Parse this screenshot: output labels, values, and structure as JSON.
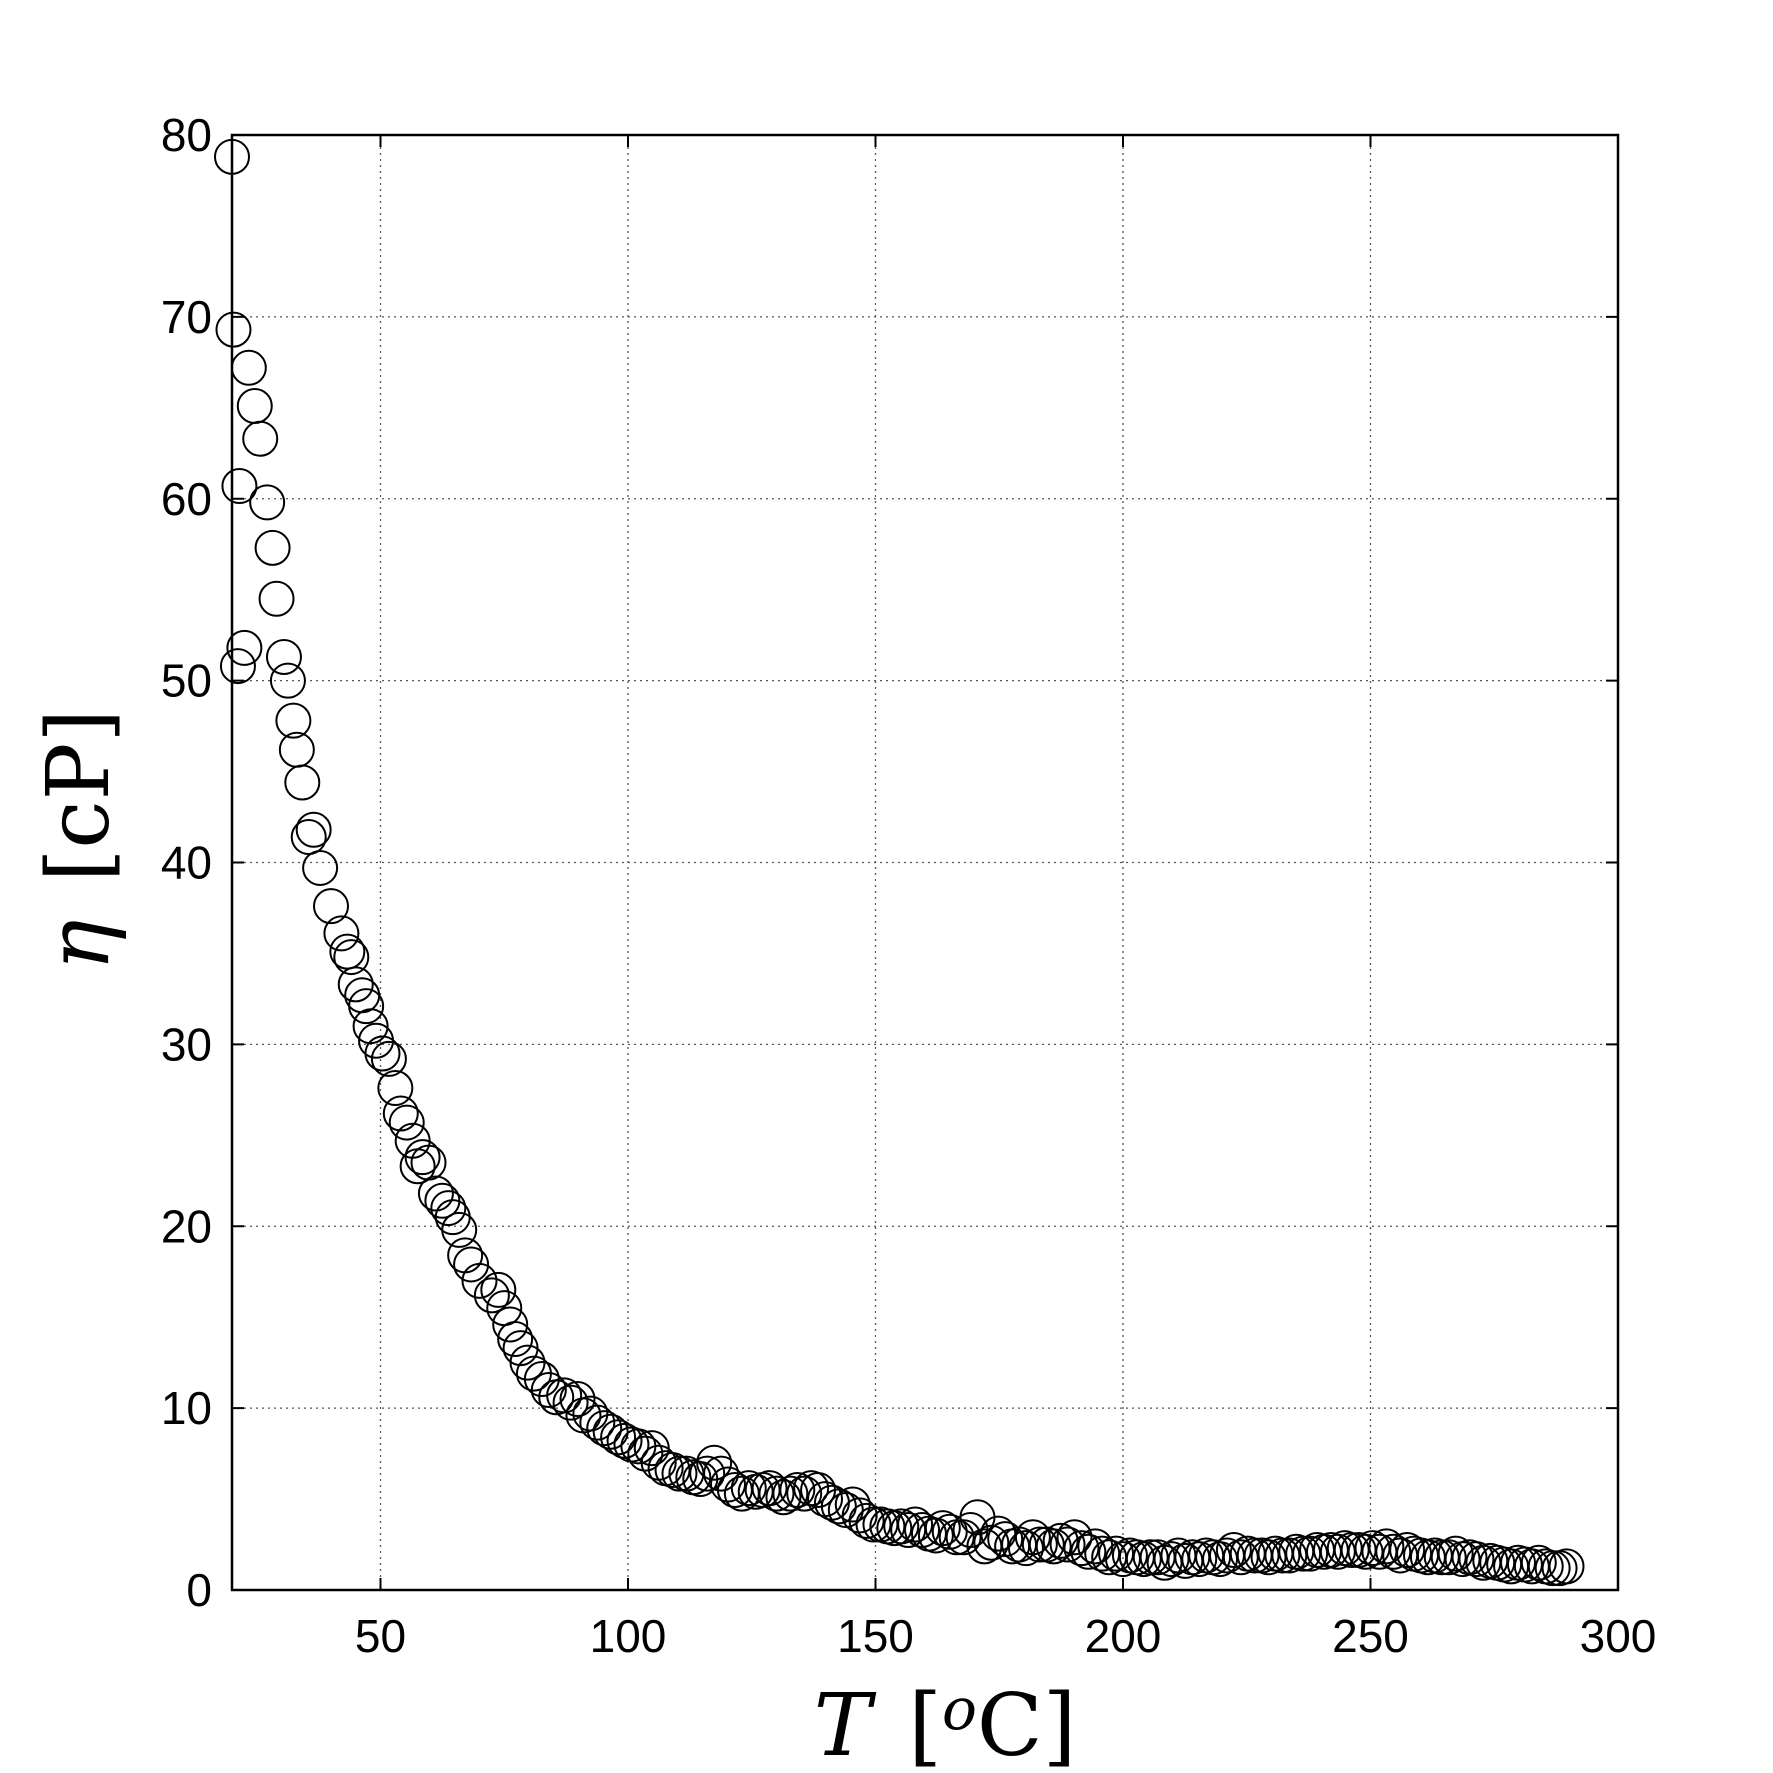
{
  "chart_data": {
    "type": "scatter",
    "xlabel": {
      "symbol": "T",
      "unit_prefix": "o",
      "unit": "C"
    },
    "ylabel": {
      "symbol": "η",
      "unit": "cP"
    },
    "xlim": [
      20,
      300
    ],
    "ylim": [
      0,
      80
    ],
    "xticks": [
      50,
      100,
      150,
      200,
      250,
      300
    ],
    "yticks": [
      0,
      10,
      20,
      30,
      40,
      50,
      60,
      70,
      80
    ],
    "grid": true,
    "marker": "open-circle",
    "marker_color": "#000000",
    "series": [
      {
        "points": [
          [
            20,
            78.8
          ],
          [
            20.3,
            69.3
          ],
          [
            21.5,
            60.7
          ],
          [
            21.2,
            50.8
          ],
          [
            22.5,
            51.8
          ],
          [
            23.4,
            67.2
          ],
          [
            24.6,
            65.1
          ],
          [
            25.7,
            63.3
          ],
          [
            27.1,
            59.8
          ],
          [
            28.2,
            57.3
          ],
          [
            29.0,
            54.5
          ],
          [
            30.5,
            51.3
          ],
          [
            31.3,
            50.0
          ],
          [
            32.4,
            47.8
          ],
          [
            33.1,
            46.2
          ],
          [
            34.2,
            44.4
          ],
          [
            35.5,
            41.4
          ],
          [
            36.5,
            41.8
          ],
          [
            37.8,
            39.7
          ],
          [
            40.0,
            37.6
          ],
          [
            42.1,
            36.1
          ],
          [
            43.3,
            35.1
          ],
          [
            44.1,
            34.8
          ],
          [
            45.0,
            33.3
          ],
          [
            46.3,
            32.7
          ],
          [
            47.1,
            32.1
          ],
          [
            48.0,
            31.0
          ],
          [
            49.1,
            30.2
          ],
          [
            50.4,
            29.5
          ],
          [
            51.7,
            29.2
          ],
          [
            53.0,
            27.6
          ],
          [
            54.1,
            26.2
          ],
          [
            55.3,
            25.7
          ],
          [
            56.5,
            24.7
          ],
          [
            57.5,
            23.3
          ],
          [
            58.5,
            23.8
          ],
          [
            59.7,
            23.5
          ],
          [
            61.2,
            21.8
          ],
          [
            62.5,
            21.4
          ],
          [
            63.7,
            21.0
          ],
          [
            64.6,
            20.5
          ],
          [
            65.9,
            19.8
          ],
          [
            67.1,
            18.4
          ],
          [
            68.3,
            17.9
          ],
          [
            70.0,
            17.0
          ],
          [
            72.5,
            16.2
          ],
          [
            73.8,
            16.5
          ],
          [
            75.0,
            15.5
          ],
          [
            76.2,
            14.6
          ],
          [
            77.2,
            13.8
          ],
          [
            78.3,
            13.3
          ],
          [
            79.7,
            12.5
          ],
          [
            81.0,
            11.9
          ],
          [
            82.6,
            11.6
          ],
          [
            84.0,
            11.0
          ],
          [
            85.5,
            10.6
          ],
          [
            87.1,
            10.7
          ],
          [
            88.4,
            10.3
          ],
          [
            89.8,
            10.5
          ],
          [
            91.0,
            9.6
          ],
          [
            92.4,
            9.7
          ],
          [
            93.8,
            9.2
          ],
          [
            95.2,
            8.9
          ],
          [
            96.5,
            8.7
          ],
          [
            98.0,
            8.4
          ],
          [
            99.3,
            8.2
          ],
          [
            100.7,
            8.0
          ],
          [
            102.1,
            7.9
          ],
          [
            103.5,
            7.5
          ],
          [
            104.8,
            7.8
          ],
          [
            106.2,
            7.0
          ],
          [
            107.6,
            6.7
          ],
          [
            109.0,
            6.6
          ],
          [
            110.4,
            6.4
          ],
          [
            111.8,
            6.4
          ],
          [
            113.2,
            6.2
          ],
          [
            114.6,
            6.1
          ],
          [
            116.0,
            6.4
          ],
          [
            117.4,
            7.0
          ],
          [
            118.8,
            6.4
          ],
          [
            120.2,
            5.8
          ],
          [
            121.6,
            5.5
          ],
          [
            123.0,
            5.3
          ],
          [
            124.4,
            5.6
          ],
          [
            125.8,
            5.4
          ],
          [
            127.2,
            5.5
          ],
          [
            128.6,
            5.6
          ],
          [
            130.0,
            5.3
          ],
          [
            131.4,
            5.1
          ],
          [
            132.8,
            5.3
          ],
          [
            134.2,
            5.5
          ],
          [
            135.6,
            5.3
          ],
          [
            137.0,
            5.6
          ],
          [
            138.4,
            5.5
          ],
          [
            139.8,
            5.0
          ],
          [
            141.2,
            4.8
          ],
          [
            142.6,
            4.6
          ],
          [
            144.0,
            4.4
          ],
          [
            145.4,
            4.7
          ],
          [
            146.8,
            4.1
          ],
          [
            148.2,
            3.8
          ],
          [
            149.6,
            3.6
          ],
          [
            151.0,
            3.6
          ],
          [
            152.4,
            3.5
          ],
          [
            153.8,
            3.4
          ],
          [
            155.2,
            3.5
          ],
          [
            156.6,
            3.3
          ],
          [
            158.0,
            3.6
          ],
          [
            159.4,
            3.3
          ],
          [
            160.8,
            3.1
          ],
          [
            162.2,
            3.0
          ],
          [
            163.6,
            3.4
          ],
          [
            165.0,
            3.2
          ],
          [
            166.4,
            2.9
          ],
          [
            167.8,
            2.9
          ],
          [
            169.2,
            3.3
          ],
          [
            170.6,
            4.0
          ],
          [
            172.0,
            2.4
          ],
          [
            173.4,
            2.6
          ],
          [
            174.8,
            3.1
          ],
          [
            176.2,
            2.8
          ],
          [
            177.6,
            2.4
          ],
          [
            179.0,
            2.5
          ],
          [
            180.4,
            2.3
          ],
          [
            181.8,
            2.9
          ],
          [
            183.2,
            2.5
          ],
          [
            184.6,
            2.5
          ],
          [
            186.0,
            2.4
          ],
          [
            187.4,
            2.7
          ],
          [
            188.8,
            2.5
          ],
          [
            190.2,
            2.9
          ],
          [
            191.6,
            2.3
          ],
          [
            193.0,
            2.1
          ],
          [
            194.4,
            2.4
          ],
          [
            195.8,
            2.0
          ],
          [
            197.2,
            1.8
          ],
          [
            198.6,
            2.0
          ],
          [
            200.0,
            1.7
          ],
          [
            201.4,
            1.9
          ],
          [
            202.8,
            1.8
          ],
          [
            204.2,
            1.7
          ],
          [
            205.6,
            1.8
          ],
          [
            207.0,
            1.8
          ],
          [
            208.4,
            1.5
          ],
          [
            209.8,
            1.7
          ],
          [
            211.2,
            1.9
          ],
          [
            212.6,
            1.6
          ],
          [
            214.0,
            1.8
          ],
          [
            215.4,
            1.7
          ],
          [
            216.8,
            1.9
          ],
          [
            218.2,
            1.8
          ],
          [
            219.6,
            1.7
          ],
          [
            221.0,
            1.9
          ],
          [
            222.4,
            2.2
          ],
          [
            223.8,
            1.8
          ],
          [
            225.2,
            2.0
          ],
          [
            226.6,
            1.9
          ],
          [
            228.0,
            1.9
          ],
          [
            229.4,
            1.8
          ],
          [
            230.8,
            2.0
          ],
          [
            232.2,
            1.9
          ],
          [
            233.6,
            1.9
          ],
          [
            235.0,
            2.1
          ],
          [
            236.4,
            2.0
          ],
          [
            237.8,
            2.0
          ],
          [
            239.2,
            2.2
          ],
          [
            240.6,
            2.1
          ],
          [
            242.0,
            2.2
          ],
          [
            243.4,
            2.1
          ],
          [
            244.8,
            2.3
          ],
          [
            246.2,
            2.2
          ],
          [
            247.6,
            2.2
          ],
          [
            249.0,
            2.1
          ],
          [
            250.4,
            2.3
          ],
          [
            251.8,
            2.1
          ],
          [
            253.2,
            2.4
          ],
          [
            254.6,
            2.1
          ],
          [
            256.0,
            1.9
          ],
          [
            257.4,
            2.2
          ],
          [
            258.8,
            2.0
          ],
          [
            260.2,
            1.9
          ],
          [
            261.6,
            1.8
          ],
          [
            263.0,
            1.9
          ],
          [
            264.4,
            1.8
          ],
          [
            265.8,
            1.8
          ],
          [
            267.2,
            2.0
          ],
          [
            268.6,
            1.7
          ],
          [
            270.0,
            1.8
          ],
          [
            271.4,
            1.7
          ],
          [
            272.8,
            1.5
          ],
          [
            274.2,
            1.6
          ],
          [
            275.6,
            1.5
          ],
          [
            277.0,
            1.4
          ],
          [
            278.4,
            1.3
          ],
          [
            279.8,
            1.5
          ],
          [
            281.2,
            1.4
          ],
          [
            282.6,
            1.3
          ],
          [
            284.0,
            1.5
          ],
          [
            285.4,
            1.3
          ],
          [
            286.8,
            1.2
          ],
          [
            288.2,
            1.2
          ],
          [
            289.6,
            1.3
          ]
        ]
      }
    ]
  }
}
